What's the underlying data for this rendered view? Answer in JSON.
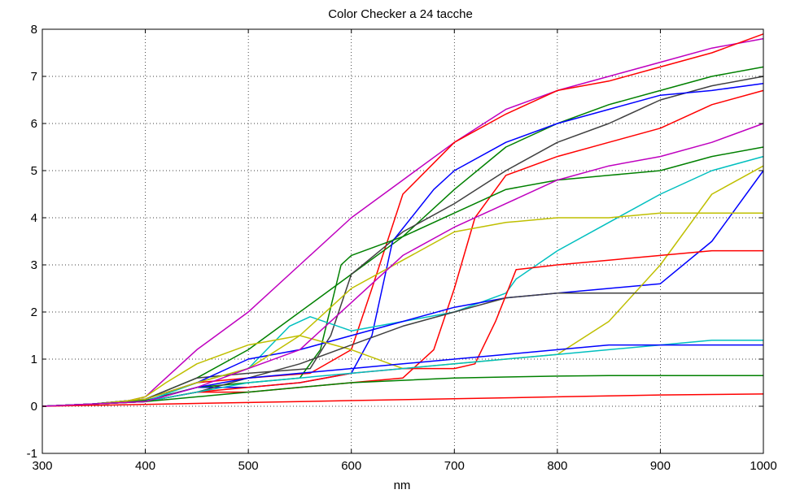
{
  "chart_data": {
    "type": "line",
    "title": "Color Checker a 24 tacche",
    "xlabel": "nm",
    "ylabel": "",
    "xlim": [
      300,
      1000
    ],
    "ylim": [
      -1,
      8
    ],
    "x_ticks": [
      "300",
      "400",
      "500",
      "600",
      "700",
      "800",
      "900",
      "1000"
    ],
    "y_ticks": [
      "-1",
      "0",
      "1",
      "2",
      "3",
      "4",
      "5",
      "6",
      "7",
      "8"
    ],
    "grid": true,
    "legend": "none",
    "series": [
      {
        "color": "#bf00bf",
        "x": [
          300,
          350,
          380,
          400,
          420,
          450,
          500,
          550,
          600,
          650,
          700,
          750,
          800,
          850,
          900,
          950,
          1000
        ],
        "y": [
          0,
          0.05,
          0.1,
          0.2,
          0.6,
          1.2,
          2.0,
          3.0,
          4.0,
          4.8,
          5.6,
          6.3,
          6.7,
          7.0,
          7.3,
          7.6,
          7.8
        ]
      },
      {
        "color": "#ff0000",
        "x": [
          300,
          350,
          400,
          450,
          500,
          560,
          600,
          620,
          650,
          700,
          750,
          800,
          850,
          900,
          950,
          1000
        ],
        "y": [
          0,
          0.05,
          0.15,
          0.5,
          0.6,
          0.7,
          1.2,
          2.5,
          4.5,
          5.6,
          6.2,
          6.7,
          6.9,
          7.2,
          7.5,
          7.9
        ]
      },
      {
        "color": "#008000",
        "x": [
          300,
          350,
          400,
          450,
          500,
          550,
          600,
          650,
          700,
          750,
          800,
          850,
          900,
          950,
          1000
        ],
        "y": [
          0,
          0.05,
          0.15,
          0.6,
          1.2,
          2.0,
          2.8,
          3.6,
          4.6,
          5.5,
          6.0,
          6.4,
          6.7,
          7.0,
          7.2
        ]
      },
      {
        "color": "#404040",
        "x": [
          300,
          350,
          400,
          450,
          500,
          560,
          580,
          600,
          650,
          700,
          750,
          800,
          850,
          900,
          950,
          1000
        ],
        "y": [
          0,
          0.05,
          0.15,
          0.6,
          0.7,
          0.8,
          1.5,
          2.8,
          3.7,
          4.3,
          5.0,
          5.6,
          6.0,
          6.5,
          6.8,
          7.0
        ]
      },
      {
        "color": "#0000ff",
        "x": [
          300,
          350,
          400,
          450,
          500,
          550,
          600,
          620,
          640,
          680,
          700,
          750,
          800,
          850,
          900,
          950,
          1000
        ],
        "y": [
          0,
          0.05,
          0.12,
          0.4,
          0.4,
          0.5,
          0.7,
          1.5,
          3.5,
          4.6,
          5.0,
          5.6,
          6.0,
          6.3,
          6.6,
          6.7,
          6.85
        ]
      },
      {
        "color": "#ff0000",
        "x": [
          300,
          350,
          400,
          450,
          500,
          550,
          600,
          650,
          680,
          700,
          720,
          750,
          800,
          850,
          900,
          950,
          1000
        ],
        "y": [
          0,
          0.05,
          0.1,
          0.3,
          0.3,
          0.4,
          0.5,
          0.6,
          1.2,
          2.5,
          4.0,
          4.9,
          5.3,
          5.6,
          5.9,
          6.4,
          6.7
        ]
      },
      {
        "color": "#008000",
        "x": [
          300,
          350,
          400,
          450,
          500,
          550,
          570,
          590,
          600,
          650,
          700,
          750,
          800,
          850,
          900,
          950,
          1000
        ],
        "y": [
          0,
          0.05,
          0.12,
          0.4,
          0.5,
          0.6,
          1.2,
          3.0,
          3.2,
          3.6,
          4.1,
          4.6,
          4.8,
          4.9,
          5.0,
          5.3,
          5.5
        ]
      },
      {
        "color": "#00bfbf",
        "x": [
          300,
          350,
          400,
          450,
          500,
          540,
          560,
          600,
          650,
          700,
          750,
          760,
          800,
          850,
          900,
          950,
          1000
        ],
        "y": [
          0,
          0.05,
          0.1,
          0.5,
          0.8,
          1.7,
          1.9,
          1.6,
          1.8,
          2.0,
          2.4,
          2.7,
          3.3,
          3.9,
          4.5,
          5.0,
          5.3
        ]
      },
      {
        "color": "#0000ff",
        "x": [
          300,
          350,
          400,
          450,
          500,
          550,
          600,
          650,
          700,
          750,
          800,
          850,
          900,
          950,
          1000
        ],
        "y": [
          0,
          0.05,
          0.15,
          0.5,
          1.0,
          1.2,
          1.5,
          1.8,
          2.1,
          2.3,
          2.4,
          2.5,
          2.6,
          3.5,
          5.0
        ]
      },
      {
        "color": "#bfbf00",
        "x": [
          300,
          350,
          380,
          400,
          420,
          450,
          500,
          550,
          600,
          650,
          700,
          750,
          800,
          850,
          900,
          950,
          1000
        ],
        "y": [
          0,
          0.05,
          0.1,
          0.2,
          0.5,
          0.9,
          1.3,
          1.5,
          1.2,
          0.8,
          0.9,
          1.0,
          1.1,
          1.8,
          3.0,
          4.5,
          5.1
        ]
      },
      {
        "color": "#404040",
        "x": [
          300,
          350,
          400,
          450,
          500,
          550,
          600,
          650,
          700,
          750,
          800,
          850,
          900,
          950,
          1000
        ],
        "y": [
          0,
          0.05,
          0.1,
          0.3,
          0.6,
          0.9,
          1.3,
          1.7,
          2.0,
          2.3,
          2.4,
          2.4,
          2.4,
          2.4,
          2.4
        ]
      },
      {
        "color": "#ff0000",
        "x": [
          300,
          350,
          400,
          450,
          500,
          550,
          600,
          650,
          700,
          720,
          740,
          760,
          800,
          850,
          900,
          950,
          1000
        ],
        "y": [
          0,
          0.05,
          0.1,
          0.3,
          0.4,
          0.5,
          0.7,
          0.8,
          0.8,
          0.9,
          1.8,
          2.9,
          3.0,
          3.1,
          3.2,
          3.3,
          3.3
        ]
      },
      {
        "color": "#bfbf00",
        "x": [
          300,
          350,
          400,
          450,
          500,
          550,
          600,
          650,
          700,
          750,
          800,
          850,
          900,
          950,
          1000
        ],
        "y": [
          0,
          0.05,
          0.15,
          0.5,
          0.8,
          1.5,
          2.5,
          3.1,
          3.7,
          3.9,
          4.0,
          4.0,
          4.1,
          4.1,
          4.1
        ]
      },
      {
        "color": "#00bfbf",
        "x": [
          300,
          350,
          400,
          450,
          500,
          550,
          600,
          650,
          700,
          750,
          800,
          850,
          900,
          950,
          1000
        ],
        "y": [
          0,
          0.05,
          0.1,
          0.3,
          0.5,
          0.6,
          0.7,
          0.8,
          0.9,
          1.0,
          1.1,
          1.2,
          1.3,
          1.4,
          1.4
        ]
      },
      {
        "color": "#0000ff",
        "x": [
          300,
          350,
          400,
          450,
          500,
          550,
          600,
          650,
          700,
          750,
          800,
          850,
          900,
          950,
          1000
        ],
        "y": [
          0,
          0.05,
          0.1,
          0.4,
          0.6,
          0.7,
          0.8,
          0.9,
          1.0,
          1.1,
          1.2,
          1.3,
          1.3,
          1.3,
          1.3
        ]
      },
      {
        "color": "#008000",
        "x": [
          300,
          350,
          400,
          450,
          500,
          550,
          600,
          650,
          700,
          750,
          800,
          850,
          900,
          950,
          1000
        ],
        "y": [
          0,
          0.05,
          0.1,
          0.2,
          0.3,
          0.4,
          0.5,
          0.55,
          0.6,
          0.62,
          0.64,
          0.65,
          0.65,
          0.65,
          0.65
        ]
      },
      {
        "color": "#ff0000",
        "x": [
          300,
          350,
          400,
          450,
          500,
          550,
          600,
          650,
          700,
          750,
          800,
          850,
          900,
          950,
          1000
        ],
        "y": [
          0,
          0.02,
          0.04,
          0.06,
          0.08,
          0.1,
          0.12,
          0.14,
          0.16,
          0.18,
          0.2,
          0.22,
          0.24,
          0.25,
          0.26
        ]
      },
      {
        "color": "#bf00bf",
        "x": [
          300,
          350,
          400,
          450,
          500,
          550,
          600,
          650,
          700,
          750,
          780,
          800,
          850,
          900,
          950,
          1000
        ],
        "y": [
          0,
          0.05,
          0.1,
          0.4,
          0.8,
          1.2,
          2.2,
          3.2,
          3.8,
          4.3,
          4.6,
          4.8,
          5.1,
          5.3,
          5.6,
          6.0
        ]
      }
    ]
  }
}
